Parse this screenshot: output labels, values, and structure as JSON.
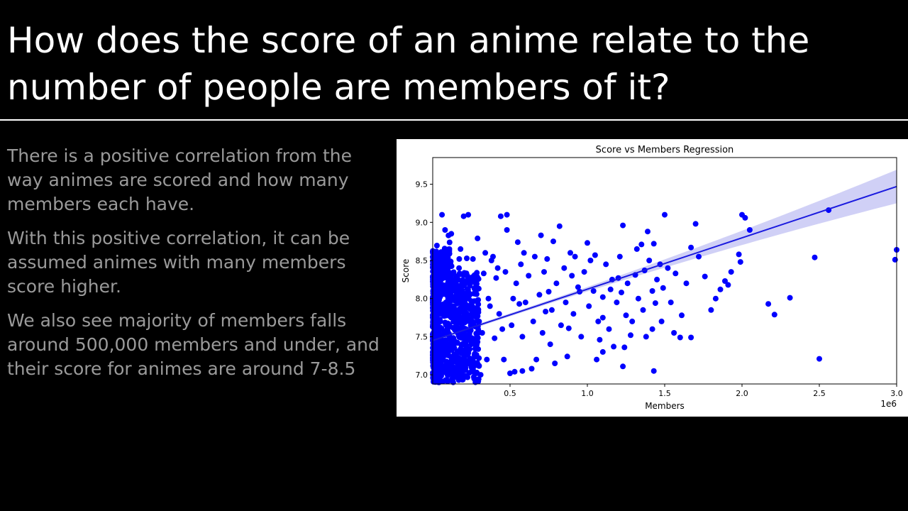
{
  "slide": {
    "title": "How does the score of an anime relate to the number of people are members of it?",
    "paragraphs": [
      "There is a positive correlation from the way animes are scored and how many members each have.",
      "With this positive correlation, it can be assumed animes with many members score higher.",
      "We also see majority of members falls around 500,000 members and under, and their score for animes are around 7-8.5"
    ],
    "colors": {
      "background": "#000000",
      "title": "#ffffff",
      "body": "#9a9a9a"
    }
  },
  "chart_data": {
    "type": "scatter",
    "title": "Score vs Members Regression",
    "xlabel": "Members",
    "ylabel": "Score",
    "x_offset_label": "1e6",
    "x_unit_scale": 1000000,
    "xlim": [
      0,
      3000000
    ],
    "ylim": [
      6.88,
      9.85
    ],
    "xticks": [
      500000,
      1000000,
      1500000,
      2000000,
      2500000,
      3000000
    ],
    "xtick_labels": [
      "0.5",
      "1.0",
      "1.5",
      "2.0",
      "2.5",
      "3.0"
    ],
    "yticks": [
      7.0,
      7.5,
      8.0,
      8.5,
      9.0,
      9.5
    ],
    "ytick_labels": [
      "7.0",
      "7.5",
      "8.0",
      "8.5",
      "9.0",
      "9.5"
    ],
    "grid": false,
    "point_color": "#0000ff",
    "regression": {
      "x": [
        0,
        3000000
      ],
      "y": [
        7.45,
        9.47
      ],
      "ci_at_end": 0.22,
      "line_color": "#1a1adf",
      "band_color": "#c8c8f4"
    },
    "points": [
      [
        2560000,
        9.16
      ],
      [
        2470000,
        8.54
      ],
      [
        2990000,
        8.51
      ],
      [
        3000000,
        8.64
      ],
      [
        2310000,
        8.01
      ],
      [
        2170000,
        7.93
      ],
      [
        2210000,
        7.79
      ],
      [
        2500000,
        7.21
      ],
      [
        2000000,
        9.1
      ],
      [
        2020000,
        9.06
      ],
      [
        2050000,
        8.9
      ],
      [
        1980000,
        8.58
      ],
      [
        1990000,
        8.48
      ],
      [
        1890000,
        8.23
      ],
      [
        1910000,
        8.18
      ],
      [
        1860000,
        8.12
      ],
      [
        1830000,
        8.0
      ],
      [
        1760000,
        8.29
      ],
      [
        1700000,
        8.98
      ],
      [
        1670000,
        8.67
      ],
      [
        1560000,
        7.55
      ],
      [
        1600000,
        7.49
      ],
      [
        1670000,
        7.49
      ],
      [
        1610000,
        7.78
      ],
      [
        1570000,
        8.33
      ],
      [
        1470000,
        8.45
      ],
      [
        1490000,
        8.14
      ],
      [
        1440000,
        7.94
      ],
      [
        1420000,
        8.1
      ],
      [
        1430000,
        8.72
      ],
      [
        1500000,
        9.1
      ],
      [
        1390000,
        8.88
      ],
      [
        1350000,
        8.71
      ],
      [
        1370000,
        8.37
      ],
      [
        1310000,
        8.31
      ],
      [
        1320000,
        8.65
      ],
      [
        1380000,
        7.5
      ],
      [
        1420000,
        7.6
      ],
      [
        1430000,
        7.05
      ],
      [
        1280000,
        7.52
      ],
      [
        1250000,
        7.78
      ],
      [
        1220000,
        8.08
      ],
      [
        1200000,
        8.27
      ],
      [
        1170000,
        7.37
      ],
      [
        1240000,
        7.36
      ],
      [
        1230000,
        7.11
      ],
      [
        1100000,
        7.3
      ],
      [
        1080000,
        7.46
      ],
      [
        1060000,
        7.2
      ],
      [
        1000000,
        8.73
      ],
      [
        1020000,
        8.5
      ],
      [
        1050000,
        8.57
      ],
      [
        1100000,
        8.02
      ],
      [
        1150000,
        8.12
      ],
      [
        1230000,
        8.96
      ],
      [
        1100000,
        7.75
      ],
      [
        950000,
        8.09
      ],
      [
        900000,
        8.3
      ],
      [
        920000,
        8.55
      ],
      [
        880000,
        7.61
      ],
      [
        870000,
        7.24
      ],
      [
        820000,
        8.95
      ],
      [
        780000,
        8.75
      ],
      [
        750000,
        8.09
      ],
      [
        760000,
        7.4
      ],
      [
        790000,
        7.15
      ],
      [
        730000,
        7.83
      ],
      [
        740000,
        8.52
      ],
      [
        700000,
        8.83
      ],
      [
        670000,
        7.2
      ],
      [
        640000,
        7.08
      ],
      [
        550000,
        8.74
      ],
      [
        590000,
        8.6
      ],
      [
        580000,
        7.5
      ],
      [
        520000,
        8.0
      ],
      [
        560000,
        7.93
      ],
      [
        530000,
        7.04
      ],
      [
        580000,
        7.05
      ],
      [
        500000,
        7.02
      ],
      [
        480000,
        8.9
      ],
      [
        440000,
        9.08
      ],
      [
        480000,
        9.1
      ],
      [
        420000,
        8.4
      ],
      [
        450000,
        7.6
      ],
      [
        460000,
        7.2
      ],
      [
        400000,
        7.48
      ],
      [
        410000,
        8.27
      ],
      [
        360000,
        8.0
      ],
      [
        330000,
        8.33
      ],
      [
        340000,
        8.6
      ],
      [
        380000,
        8.5
      ],
      [
        350000,
        7.2
      ],
      [
        310000,
        7.0
      ],
      [
        300000,
        7.7
      ],
      [
        290000,
        8.79
      ],
      [
        260000,
        8.52
      ],
      [
        250000,
        7.1
      ],
      [
        230000,
        9.1
      ],
      [
        200000,
        9.08
      ],
      [
        180000,
        8.65
      ],
      [
        150000,
        8.2
      ],
      [
        130000,
        7.9
      ],
      [
        120000,
        8.85
      ],
      [
        110000,
        7.5
      ],
      [
        90000,
        8.1
      ],
      [
        60000,
        9.1
      ],
      [
        80000,
        8.9
      ],
      [
        40000,
        8.5
      ],
      [
        50000,
        7.7
      ],
      [
        70000,
        7.3
      ],
      [
        100000,
        7.0
      ],
      [
        30000,
        7.2
      ],
      [
        140000,
        7.35
      ],
      [
        160000,
        7.8
      ],
      [
        170000,
        8.4
      ],
      [
        190000,
        7.6
      ],
      [
        210000,
        7.25
      ],
      [
        220000,
        8.0
      ],
      [
        240000,
        7.45
      ],
      [
        270000,
        7.85
      ],
      [
        280000,
        8.15
      ],
      [
        320000,
        7.55
      ],
      [
        370000,
        7.9
      ],
      [
        390000,
        8.55
      ],
      [
        430000,
        7.8
      ],
      [
        470000,
        8.35
      ],
      [
        510000,
        7.65
      ],
      [
        540000,
        8.2
      ],
      [
        570000,
        8.45
      ],
      [
        600000,
        7.95
      ],
      [
        620000,
        8.3
      ],
      [
        650000,
        7.7
      ],
      [
        660000,
        8.55
      ],
      [
        690000,
        8.05
      ],
      [
        710000,
        7.55
      ],
      [
        720000,
        8.35
      ],
      [
        770000,
        7.85
      ],
      [
        800000,
        8.2
      ],
      [
        830000,
        7.65
      ],
      [
        850000,
        8.4
      ],
      [
        860000,
        7.95
      ],
      [
        890000,
        8.6
      ],
      [
        910000,
        7.8
      ],
      [
        940000,
        8.15
      ],
      [
        960000,
        7.5
      ],
      [
        980000,
        8.35
      ],
      [
        1010000,
        7.9
      ],
      [
        1040000,
        8.1
      ],
      [
        1070000,
        7.7
      ],
      [
        1120000,
        8.45
      ],
      [
        1140000,
        7.6
      ],
      [
        1160000,
        8.25
      ],
      [
        1190000,
        7.95
      ],
      [
        1210000,
        8.55
      ],
      [
        1260000,
        8.2
      ],
      [
        1290000,
        7.7
      ],
      [
        1330000,
        8.0
      ],
      [
        1360000,
        7.85
      ],
      [
        1400000,
        8.5
      ],
      [
        1450000,
        8.25
      ],
      [
        1480000,
        7.7
      ],
      [
        1520000,
        8.4
      ],
      [
        1540000,
        7.95
      ],
      [
        1640000,
        8.2
      ],
      [
        1720000,
        8.55
      ],
      [
        1800000,
        7.85
      ],
      [
        1930000,
        8.35
      ]
    ]
  }
}
